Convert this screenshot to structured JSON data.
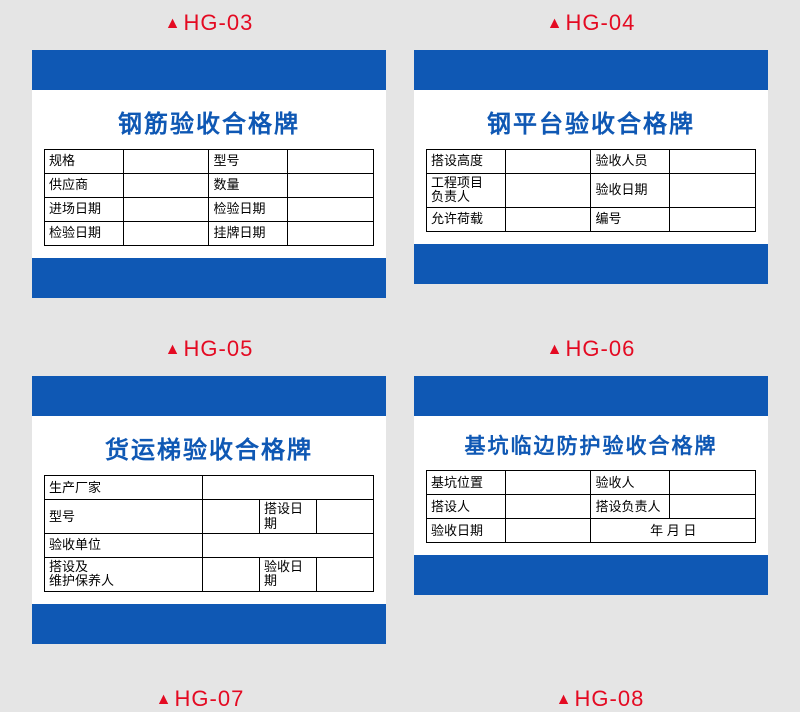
{
  "colors": {
    "background": "#e5e5e5",
    "blue": "#0f58b4",
    "red": "#e40a22",
    "white": "#ffffff",
    "black": "#000000"
  },
  "labels": {
    "top_left": "HG-03",
    "top_right": "HG-04",
    "mid_left": "HG-05",
    "mid_right": "HG-06",
    "bottom_left": "HG-07",
    "bottom_right": "HG-08"
  },
  "card1": {
    "title": "钢筋验收合格牌",
    "rows": [
      [
        "规格",
        "",
        "型号",
        ""
      ],
      [
        "供应商",
        "",
        "数量",
        ""
      ],
      [
        "进场日期",
        "",
        "检验日期",
        ""
      ],
      [
        "检验日期",
        "",
        "挂牌日期",
        ""
      ]
    ]
  },
  "card2": {
    "title": "钢平台验收合格牌",
    "rows": [
      [
        "搭设高度",
        "",
        "验收人员",
        ""
      ],
      [
        "工程项目\n负责人",
        "",
        "验收日期",
        ""
      ],
      [
        "允许荷载",
        "",
        "编号",
        ""
      ]
    ]
  },
  "card3": {
    "title": "货运梯验收合格牌",
    "rows": [
      [
        "生产厂家",
        "",
        "",
        ""
      ],
      [
        "型号",
        "",
        "搭设日期",
        ""
      ],
      [
        "验收单位",
        "",
        "",
        ""
      ],
      [
        "搭设及\n维护保养人",
        "",
        "验收日期",
        ""
      ]
    ],
    "wide_rows": [
      0,
      2
    ]
  },
  "card4": {
    "title": "基坑临边防护验收合格牌",
    "rows": [
      [
        "基坑位置",
        "",
        "验收人",
        ""
      ],
      [
        "搭设人",
        "",
        "搭设负责人",
        ""
      ],
      [
        "验收日期",
        "",
        "年  月  日",
        ""
      ]
    ],
    "date_row": 2
  }
}
